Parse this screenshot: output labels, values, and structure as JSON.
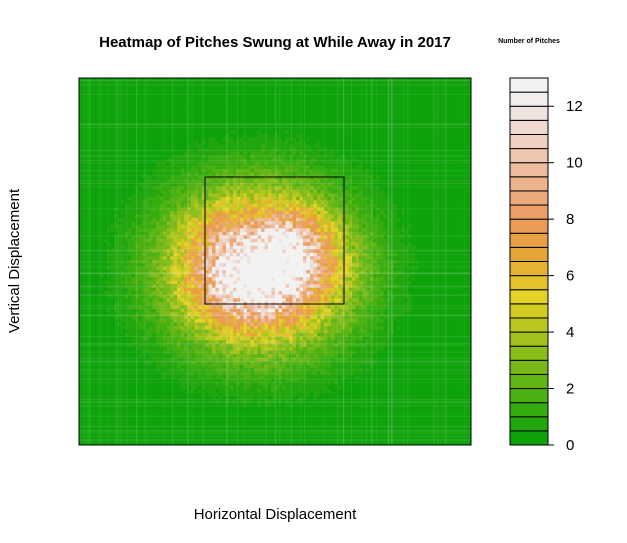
{
  "chart_data": {
    "type": "heatmap",
    "title": "Heatmap of Pitches Swung at While Away in 2017",
    "xlabel": "Horizontal Displacement",
    "ylabel": "Vertical Displacement",
    "legend_title": "Number of Pitches",
    "legend_placement": "right",
    "color_range": [
      0,
      13
    ],
    "color_ticks": [
      0,
      2,
      4,
      6,
      8,
      10,
      12
    ],
    "color_levels": 26,
    "strike_zone": true,
    "palette": [
      "#0ea30a",
      "#21a70d",
      "#36ac0f",
      "#4bb012",
      "#60b515",
      "#76b918",
      "#8cbe1b",
      "#a3c21e",
      "#b9c721",
      "#d0cc24",
      "#e3d329",
      "#e4c12d",
      "#e5b231",
      "#e6a637",
      "#e89f46",
      "#e99c56",
      "#eaa066",
      "#eba878",
      "#ecb28a",
      "#edbc9c",
      "#eec6ae",
      "#efd0c0",
      "#efd9d0",
      "#f0e3df",
      "#f1eeec",
      "#f2f2f2"
    ],
    "hotspots": [
      {
        "x": 0.46,
        "y": 0.52,
        "spread_x": 0.16,
        "spread_y": 0.15,
        "count": 9.8
      },
      {
        "x": 0.53,
        "y": 0.49,
        "spread_x": 0.08,
        "spread_y": 0.07,
        "count": 5.0
      },
      {
        "x": 0.39,
        "y": 0.54,
        "spread_x": 0.07,
        "spread_y": 0.07,
        "count": 3.5
      },
      {
        "x": 0.47,
        "y": 0.58,
        "spread_x": 0.07,
        "spread_y": 0.06,
        "count": 3.0
      },
      {
        "x": 0.55,
        "y": 0.42,
        "spread_x": 0.05,
        "spread_y": 0.04,
        "count": 1.5
      },
      {
        "x": 0.34,
        "y": 0.41,
        "spread_x": 0.05,
        "spread_y": 0.04,
        "count": 1.2
      }
    ]
  }
}
